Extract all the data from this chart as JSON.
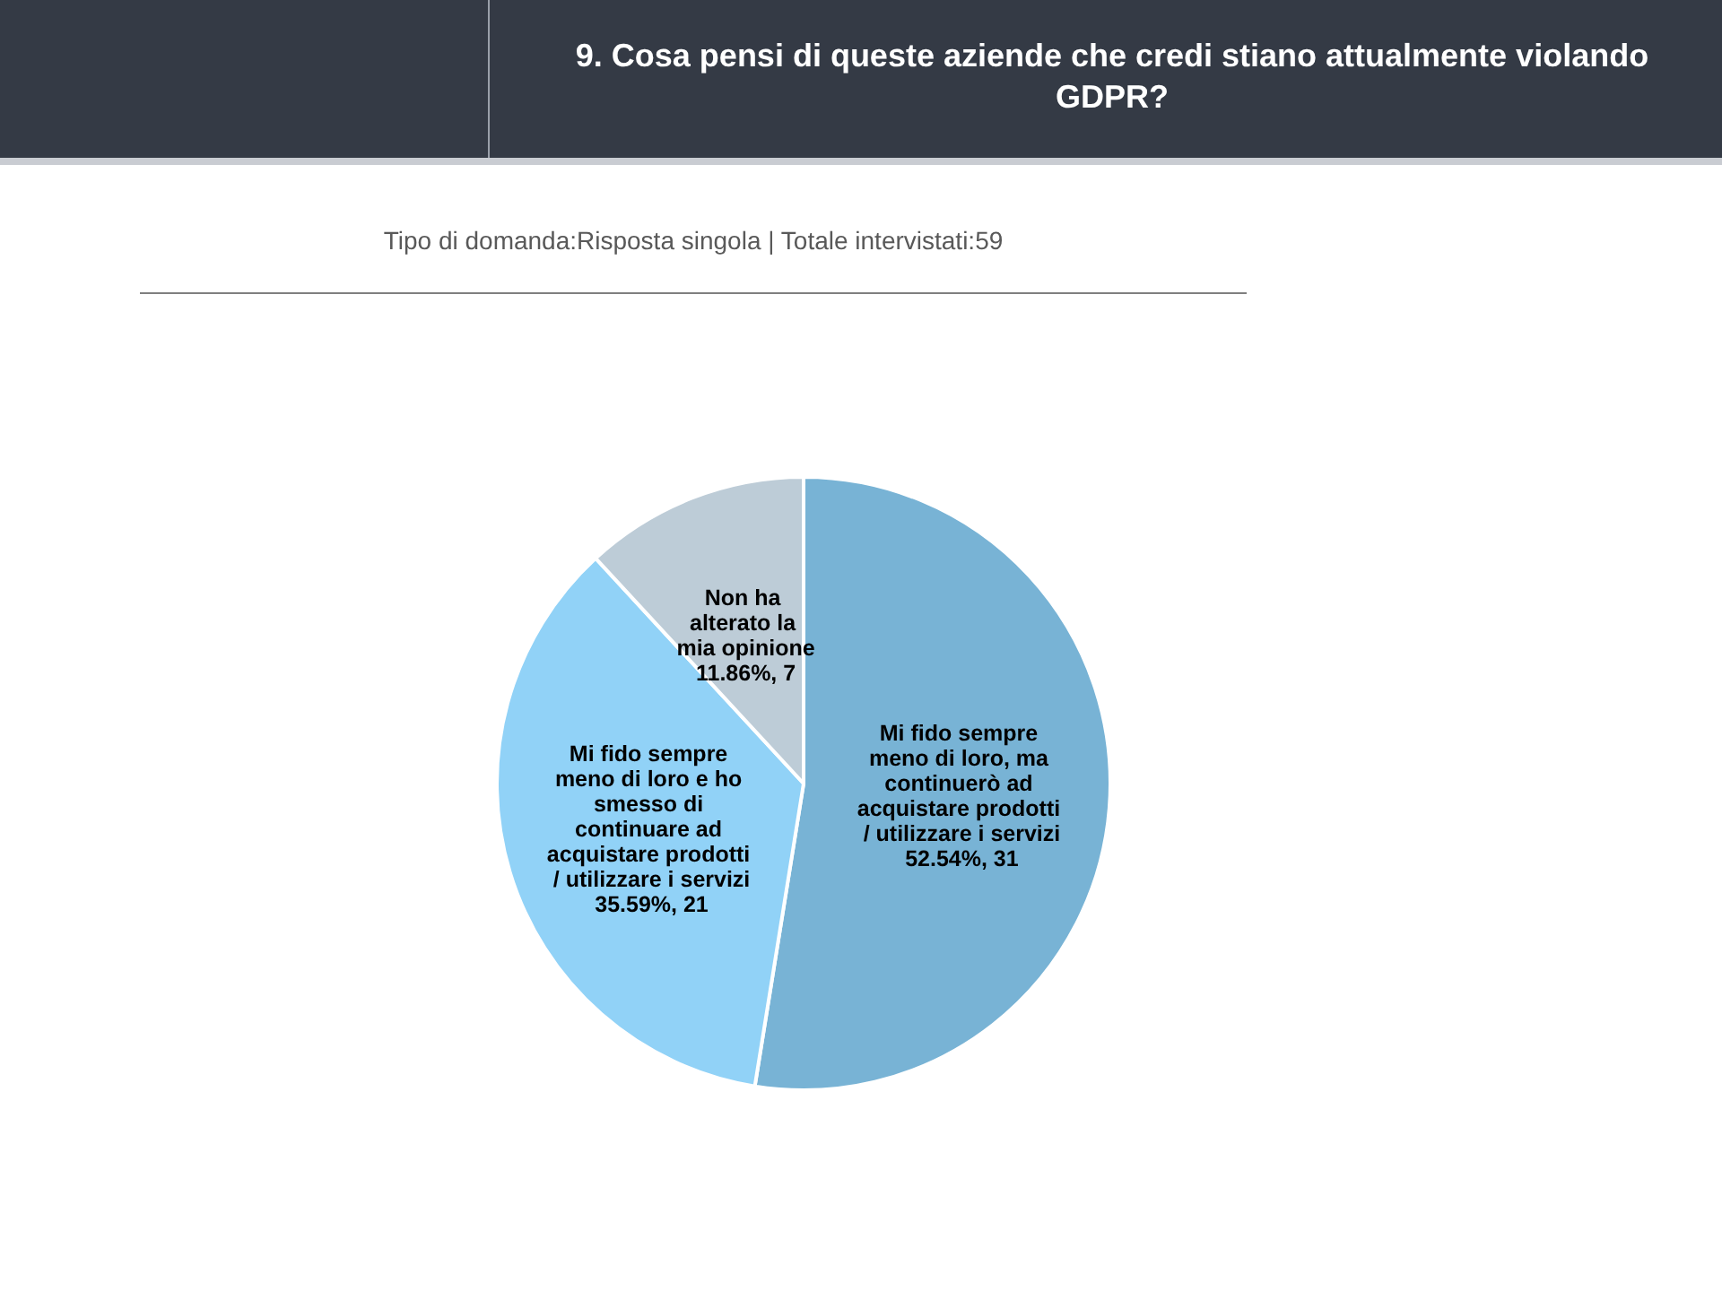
{
  "chart_data": {
    "type": "pie",
    "title": "9. Cosa pensi di queste aziende che credi stiano attualmente violando GDPR?",
    "subtitle": "Tipo di domanda:Risposta singola | Totale intervistati:59",
    "categories": [
      "Mi fido sempre meno di loro, ma continuerò ad acquistare prodotti / utilizzare i servizi",
      "Mi fido sempre meno di loro e ho smesso di continuare ad acquistare prodotti / utilizzare i servizi",
      "Non ha alterato la mia opinione"
    ],
    "values": [
      31,
      21,
      7
    ],
    "value_labels": [
      "52.54%, 31",
      "35.59%, 21",
      "11.86%, 7"
    ],
    "colors": [
      "#78b3d5",
      "#91d2f7",
      "#bdccd7"
    ],
    "legend": false
  }
}
